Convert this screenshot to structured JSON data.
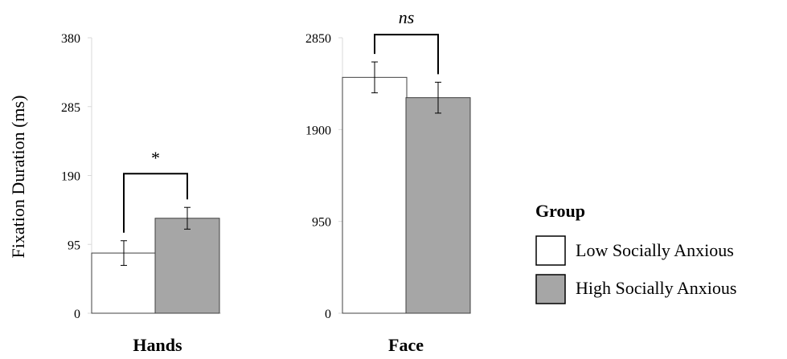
{
  "chart_data": [
    {
      "type": "bar",
      "xlabel": "Hands",
      "ylabel": "Fixation Duration (ms)",
      "ylim": [
        0,
        380
      ],
      "yticks": [
        "0",
        "95",
        "190",
        "285",
        "380"
      ],
      "series": [
        {
          "name": "Low Socially Anxious",
          "value": 83,
          "error": 17,
          "color": "#ffffff"
        },
        {
          "name": "High Socially Anxious",
          "value": 131,
          "error": 15,
          "color": "#a6a6a6"
        }
      ],
      "significance": "*"
    },
    {
      "type": "bar",
      "xlabel": "Face",
      "ylim": [
        0,
        2850
      ],
      "yticks": [
        "0",
        "950",
        "1900",
        "2850"
      ],
      "series": [
        {
          "name": "Low Socially Anxious",
          "value": 2440,
          "error": 160,
          "color": "#ffffff"
        },
        {
          "name": "High Socially Anxious",
          "value": 2230,
          "error": 160,
          "color": "#a6a6a6"
        }
      ],
      "significance": "ns"
    }
  ],
  "legend": {
    "title": "Group",
    "items": [
      {
        "label": "Low Socially Anxious",
        "color": "#ffffff"
      },
      {
        "label": "High Socially Anxious",
        "color": "#a6a6a6"
      }
    ]
  }
}
